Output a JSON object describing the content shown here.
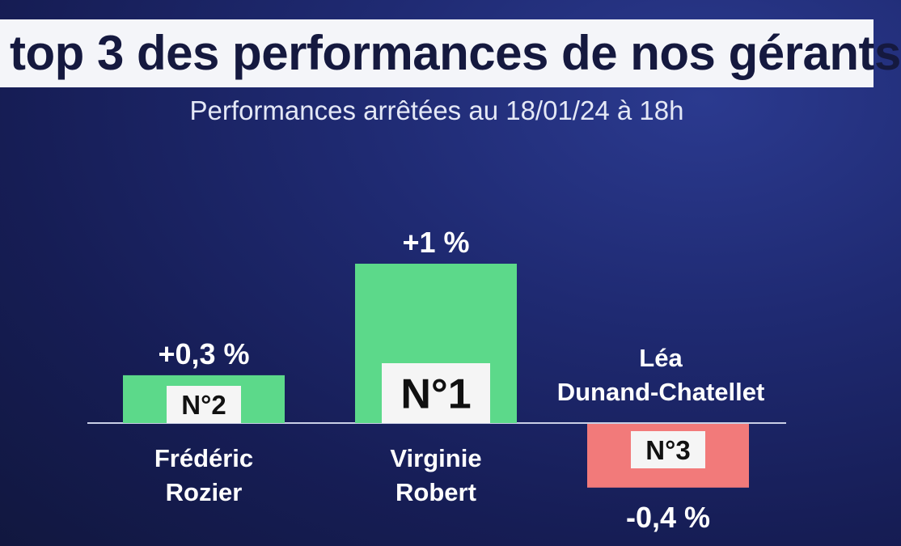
{
  "header": {
    "title": "top 3 des performances de nos gérants",
    "subtitle": "Performances arrêtées au 18/01/24 à 18h"
  },
  "chart_data": {
    "type": "bar",
    "categories": [
      "Frédéric Rozier",
      "Virginie Robert",
      "Léa Dunand-Chatellet"
    ],
    "category_lines": [
      [
        "Frédéric",
        "Rozier"
      ],
      [
        "Virginie",
        "Robert"
      ],
      [
        "Léa",
        "Dunand-Chatellet"
      ]
    ],
    "values": [
      0.3,
      1.0,
      -0.4
    ],
    "value_labels": [
      "+0,3 %",
      "+1 %",
      "-0,4 %"
    ],
    "ranks": [
      "N°2",
      "N°1",
      "N°3"
    ],
    "unit": "%",
    "ylim": [
      -0.5,
      1.0
    ],
    "grid": false,
    "colors": {
      "positive": "#5cd98a",
      "negative": "#f27a7a",
      "badge_bg": "#f5f5f5",
      "badge_text": "#111111",
      "baseline": "#c9cfe6",
      "label_text": "#ffffff"
    }
  }
}
